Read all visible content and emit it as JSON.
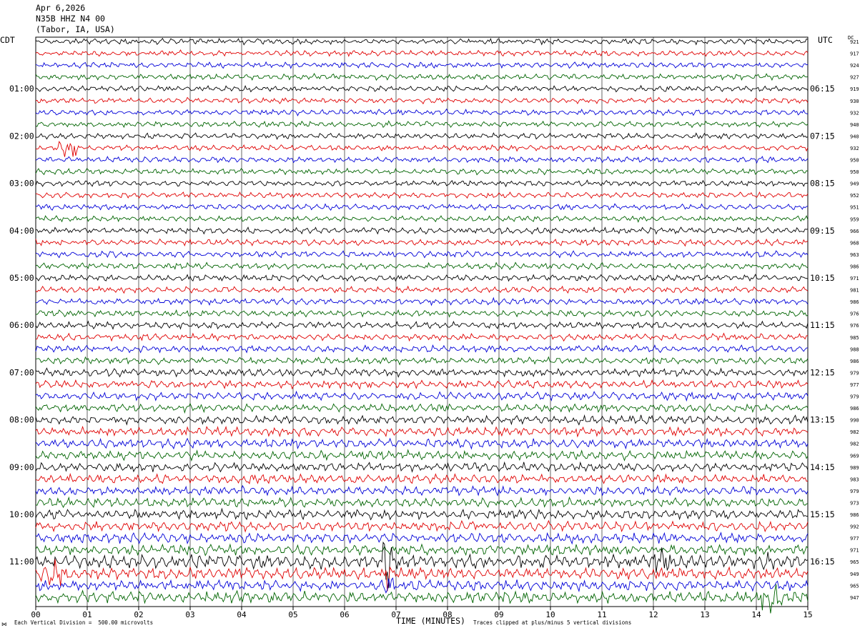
{
  "header": {
    "date": "Apr 6,2026",
    "station": "N35B HHZ N4 00",
    "location": "(Tabor, IA, USA)"
  },
  "left_axis_label": "CDT",
  "right_axis_label": "UTC",
  "dc_label": "DC",
  "footer": {
    "scale_note": "Each Vertical Division =  500.00 microvolts",
    "x_axis_title": "TIME (MINUTES)",
    "clip_note": "Traces clipped at plus/minus 5 vertical divisions",
    "corner_glyph": "⋈"
  },
  "colors": {
    "black": "#000000",
    "red": "#e00000",
    "blue": "#0000d8",
    "green": "#006400",
    "grid": "#000000"
  },
  "chart_data": {
    "type": "line",
    "title": "N35B HHZ N4 00",
    "xlabel": "TIME (MINUTES)",
    "x_ticks": [
      "00",
      "01",
      "02",
      "03",
      "04",
      "05",
      "06",
      "07",
      "08",
      "09",
      "10",
      "11",
      "12",
      "13",
      "14",
      "15"
    ],
    "xlim": [
      0,
      15
    ],
    "trace_color_cycle": [
      "black",
      "red",
      "blue",
      "green"
    ],
    "trace_count": 48,
    "left_hour_labels": [
      {
        "trace_index": 4,
        "label": "01:00"
      },
      {
        "trace_index": 8,
        "label": "02:00"
      },
      {
        "trace_index": 12,
        "label": "03:00"
      },
      {
        "trace_index": 16,
        "label": "04:00"
      },
      {
        "trace_index": 20,
        "label": "05:00"
      },
      {
        "trace_index": 24,
        "label": "06:00"
      },
      {
        "trace_index": 28,
        "label": "07:00"
      },
      {
        "trace_index": 32,
        "label": "08:00"
      },
      {
        "trace_index": 36,
        "label": "09:00"
      },
      {
        "trace_index": 40,
        "label": "10:00"
      },
      {
        "trace_index": 44,
        "label": "11:00"
      }
    ],
    "right_hour_labels": [
      {
        "trace_index": 4,
        "label": "06:15"
      },
      {
        "trace_index": 8,
        "label": "07:15"
      },
      {
        "trace_index": 12,
        "label": "08:15"
      },
      {
        "trace_index": 16,
        "label": "09:15"
      },
      {
        "trace_index": 20,
        "label": "10:15"
      },
      {
        "trace_index": 24,
        "label": "11:15"
      },
      {
        "trace_index": 28,
        "label": "12:15"
      },
      {
        "trace_index": 32,
        "label": "13:15"
      },
      {
        "trace_index": 36,
        "label": "14:15"
      },
      {
        "trace_index": 40,
        "label": "15:15"
      },
      {
        "trace_index": 44,
        "label": "16:15"
      }
    ],
    "dc_offsets": [
      "921",
      "917",
      "924",
      "927",
      "919",
      "930",
      "932",
      "940",
      "940",
      "932",
      "950",
      "950",
      "949",
      "952",
      "951",
      "959",
      "966",
      "968",
      "963",
      "986",
      "971",
      "981",
      "986",
      "976",
      "976",
      "985",
      "988",
      "986",
      "979",
      "977",
      "979",
      "986",
      "990",
      "982",
      "982",
      "969",
      "989",
      "983",
      "979",
      "973",
      "986",
      "992",
      "977",
      "971",
      "965",
      "949",
      "965",
      "947"
    ],
    "trace_amplitude": [
      0.5,
      0.5,
      0.5,
      0.5,
      0.5,
      0.5,
      0.5,
      0.5,
      0.5,
      0.5,
      0.5,
      0.5,
      0.5,
      0.5,
      0.5,
      0.5,
      0.55,
      0.55,
      0.55,
      0.55,
      0.55,
      0.55,
      0.55,
      0.55,
      0.6,
      0.6,
      0.6,
      0.6,
      0.7,
      0.7,
      0.7,
      0.7,
      0.75,
      0.8,
      0.8,
      0.8,
      0.8,
      0.8,
      0.8,
      0.8,
      0.85,
      0.85,
      0.85,
      0.9,
      1.2,
      1.0,
      0.9,
      1.0
    ],
    "events": [
      {
        "trace_index": 9,
        "start_min": 0.45,
        "end_min": 0.9,
        "amplitude": 2.2
      },
      {
        "trace_index": 39,
        "start_min": 1.3,
        "end_min": 1.9,
        "amplitude": 0.6
      },
      {
        "trace_index": 44,
        "start_min": 6.75,
        "end_min": 6.95,
        "amplitude": 8.0
      },
      {
        "trace_index": 44,
        "start_min": 11.9,
        "end_min": 12.4,
        "amplitude": 2.5
      },
      {
        "trace_index": 44,
        "start_min": 14.1,
        "end_min": 14.25,
        "amplitude": 3.0
      },
      {
        "trace_index": 45,
        "start_min": 0.0,
        "end_min": 0.7,
        "amplitude": 2.6
      },
      {
        "trace_index": 45,
        "start_min": 6.75,
        "end_min": 6.95,
        "amplitude": 4.0
      },
      {
        "trace_index": 46,
        "start_min": 6.75,
        "end_min": 6.95,
        "amplitude": 3.0
      },
      {
        "trace_index": 47,
        "start_min": 14.0,
        "end_min": 14.5,
        "amplitude": 3.2
      }
    ]
  }
}
